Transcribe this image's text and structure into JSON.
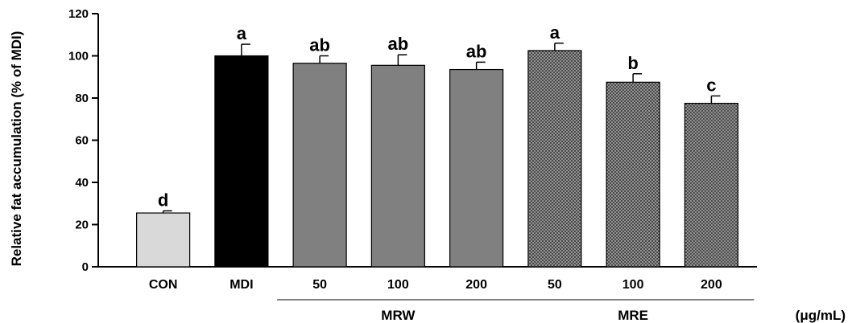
{
  "chart_data": {
    "type": "bar",
    "ylabel": "Relative fat accumulation (% of MDI)",
    "ylim": [
      0,
      120
    ],
    "yticks": [
      "0",
      "20",
      "40",
      "60",
      "80",
      "100",
      "120"
    ],
    "categories": [
      "CON",
      "MDI",
      "50",
      "100",
      "200",
      "50",
      "100",
      "200"
    ],
    "values": [
      25.5,
      100,
      96.5,
      95.5,
      93.5,
      102.5,
      87.5,
      77.5
    ],
    "errors": [
      1,
      5.5,
      3.5,
      5,
      3.5,
      3.5,
      4,
      3.5
    ],
    "significance": [
      "d",
      "a",
      "ab",
      "ab",
      "ab",
      "a",
      "b",
      "c"
    ],
    "colors": [
      "#d9d9d9",
      "#000000",
      "#808080",
      "#808080",
      "#808080",
      "hatch",
      "hatch",
      "hatch"
    ],
    "groups": [
      {
        "label": "MRW",
        "members": [
          2,
          3,
          4
        ]
      },
      {
        "label": "MRE",
        "members": [
          5,
          6,
          7
        ]
      }
    ],
    "unit": "(μg/mL)",
    "grid": false
  }
}
